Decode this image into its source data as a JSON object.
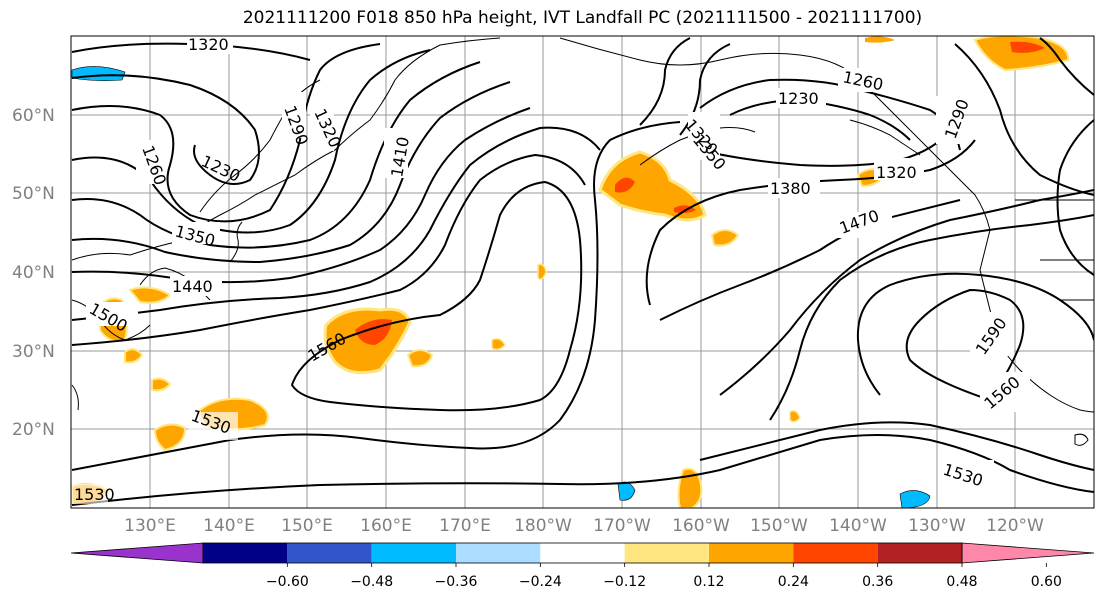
{
  "title": "2021111200 F018 850 hPa height, IVT Landfall PC (2021111500 - 2021111700)",
  "lat_labels": [
    "60°N",
    "50°N",
    "40°N",
    "30°N",
    "20°N"
  ],
  "lon_labels": [
    "130°E",
    "140°E",
    "150°E",
    "160°E",
    "170°E",
    "180°W",
    "170°W",
    "160°W",
    "150°W",
    "140°W",
    "130°W",
    "120°W"
  ],
  "contour_labels": [
    "1320",
    "1290",
    "1320",
    "1260",
    "1230",
    "1410",
    "1350",
    "1440",
    "1500",
    "1560",
    "1530",
    "1320",
    "1350",
    "1260",
    "1230",
    "1380",
    "1290",
    "1320",
    "1470",
    "1590",
    "1560",
    "1530",
    "1530"
  ],
  "colorbar": {
    "ticks": [
      "−0.60",
      "−0.48",
      "−0.36",
      "−0.24",
      "−0.12",
      "0.12",
      "0.24",
      "0.36",
      "0.48",
      "0.60"
    ],
    "colors": [
      "#9933cc",
      "#000088",
      "#3355cc",
      "#00bbff",
      "#aaddff",
      "#ffffff",
      "#ffe680",
      "#ffa500",
      "#ff4500",
      "#b22222",
      "#ff88aa"
    ]
  }
}
